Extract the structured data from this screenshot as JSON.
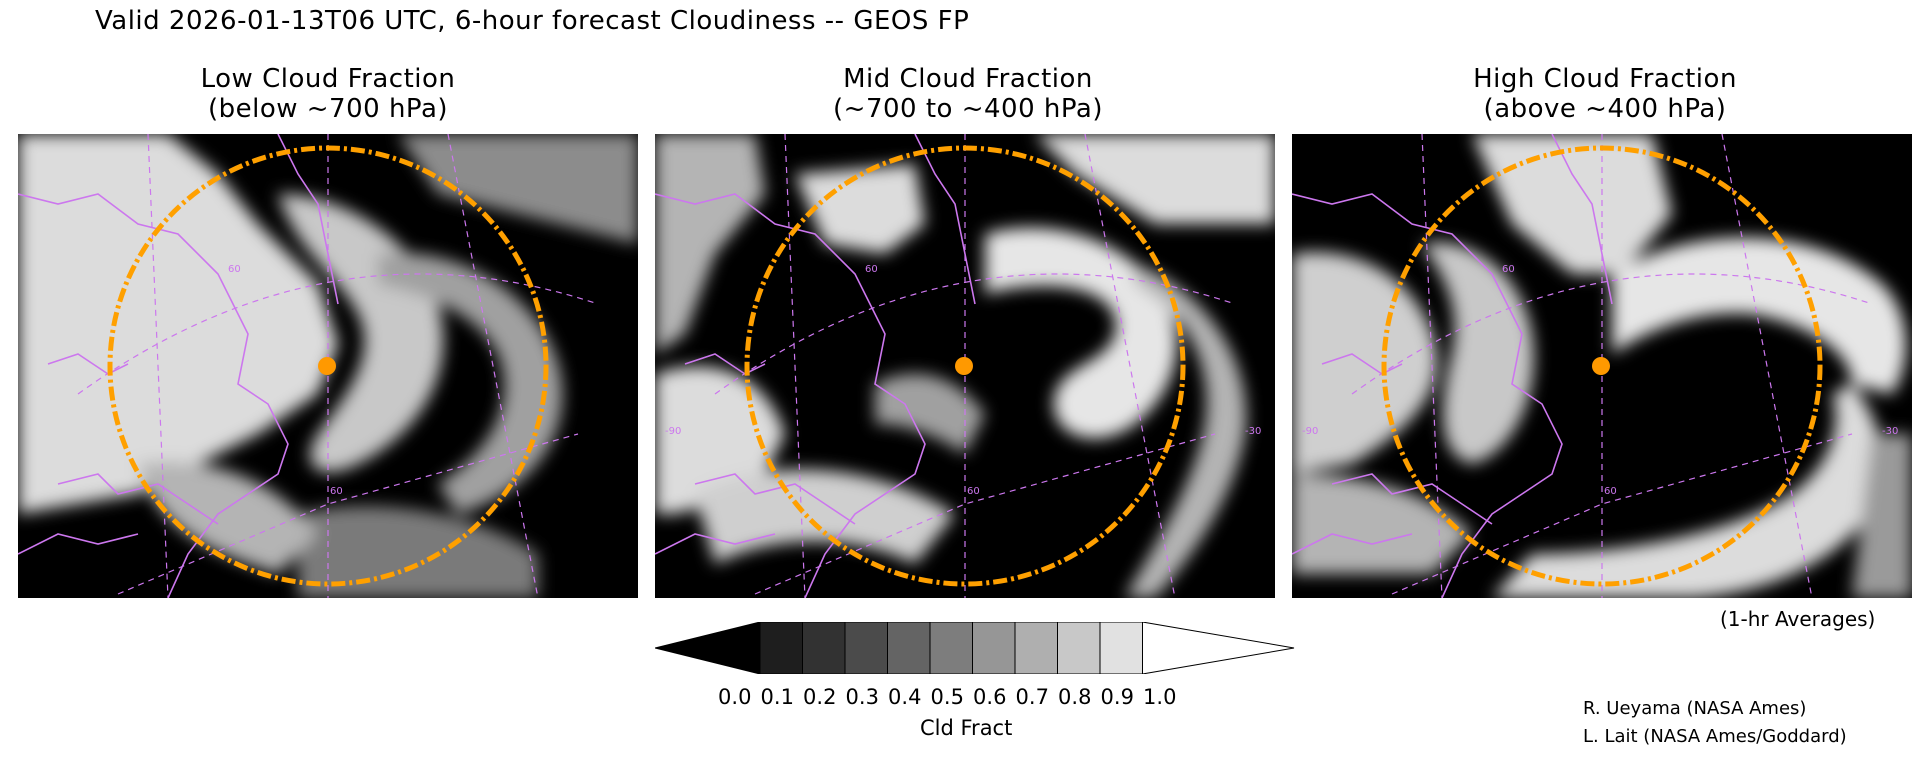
{
  "title": "Valid 2026-01-13T06 UTC, 6-hour forecast Cloudiness -- GEOS FP",
  "panels": [
    {
      "line1": "Low Cloud Fraction",
      "line2": "(below ~700 hPa)"
    },
    {
      "line1": "Mid Cloud Fraction",
      "line2": "(~700 to ~400 hPa)"
    },
    {
      "line1": "High Cloud Fraction",
      "line2": "(above ~400 hPa)"
    }
  ],
  "averaging_note": "(1-hr Averages)",
  "colorbar": {
    "label": "Cld Fract",
    "ticks": [
      "0.0",
      "0.1",
      "0.2",
      "0.3",
      "0.4",
      "0.5",
      "0.6",
      "0.7",
      "0.8",
      "0.9",
      "1.0"
    ],
    "colors": [
      "#000000",
      "#1e1e1e",
      "#323232",
      "#4b4b4b",
      "#646464",
      "#7d7d7d",
      "#969696",
      "#afafaf",
      "#c8c8c8",
      "#e1e1e1",
      "#ffffff"
    ]
  },
  "credits": [
    "R. Ueyama (NASA Ames)",
    "L. Lait (NASA Ames/Goddard)"
  ],
  "map_labels": {
    "lat_60": "60",
    "lon_60": "60",
    "lon_90": "-90",
    "lon_30": "-30"
  },
  "styles": {
    "coast_color": "#cc77ee",
    "ring_color": "#ffa000",
    "marker_color": "#ff9900"
  }
}
